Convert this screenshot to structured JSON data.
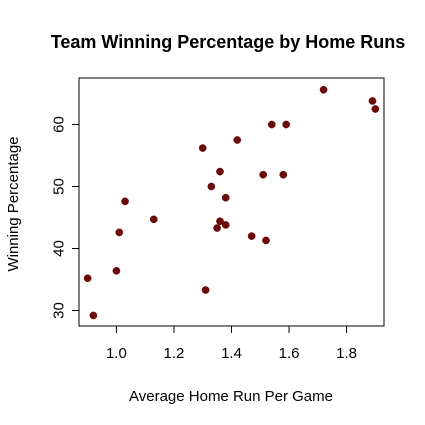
{
  "chart_data": {
    "type": "scatter",
    "title": "Team Winning Percentage by Home Runs",
    "xlabel": "Average Home Run Per Game",
    "ylabel": "Winning Percentage",
    "xlim": [
      0.87,
      1.93
    ],
    "ylim": [
      27.5,
      67.5
    ],
    "x_ticks": [
      1.0,
      1.2,
      1.4,
      1.6,
      1.8
    ],
    "x_tick_labels": [
      "1.0",
      "1.2",
      "1.4",
      "1.6",
      "1.8"
    ],
    "y_ticks": [
      30,
      40,
      50,
      60
    ],
    "y_tick_labels": [
      "30",
      "40",
      "50",
      "60"
    ],
    "grid": false,
    "legend": "none",
    "point_color": "#6b0a0a",
    "series": [
      {
        "x": [
          0.9,
          0.92,
          1.0,
          1.01,
          1.03,
          1.13,
          1.3,
          1.31,
          1.33,
          1.35,
          1.36,
          1.36,
          1.38,
          1.38,
          1.42,
          1.47,
          1.51,
          1.52,
          1.54,
          1.58,
          1.59,
          1.72,
          1.89,
          1.9
        ],
        "y": [
          35.2,
          29.2,
          36.4,
          42.6,
          47.6,
          44.7,
          56.2,
          33.3,
          50.0,
          43.3,
          44.4,
          52.4,
          48.2,
          43.8,
          57.5,
          42.0,
          51.9,
          41.3,
          60.0,
          51.9,
          60.0,
          65.6,
          63.8,
          62.5
        ]
      }
    ]
  }
}
